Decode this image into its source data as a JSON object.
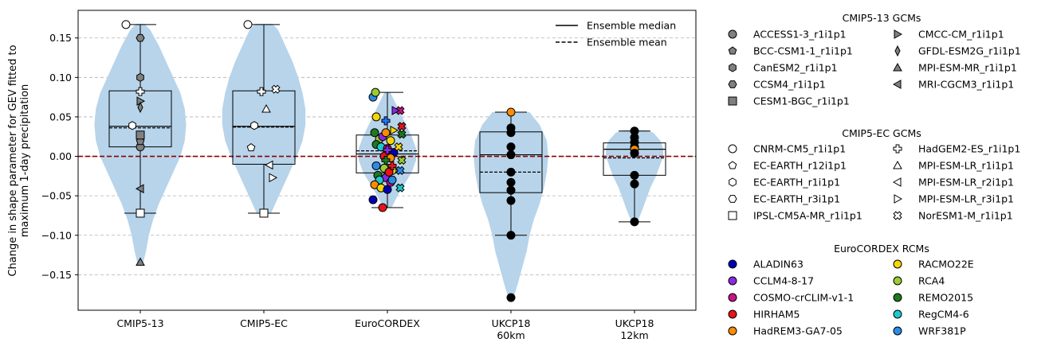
{
  "chart_data": {
    "type": "violin",
    "ylabel": [
      "Change in shape parameter for GEV fitted to",
      "maximum 1-day precipitation"
    ],
    "ylim": [
      -0.195,
      0.185
    ],
    "yticks": [
      -0.15,
      -0.1,
      -0.05,
      0.0,
      0.05,
      0.1,
      0.15
    ],
    "ytick_labels": [
      "−0.15",
      "−0.10",
      "−0.05",
      "0.00",
      "0.05",
      "0.10",
      "0.15"
    ],
    "grid": "horizontal dashed",
    "zero_line_color": "#8b0000",
    "violin_color": "#b7d4ea",
    "legend_lines": [
      {
        "label": "Ensemble median",
        "style": "solid"
      },
      {
        "label": "Ensemble mean",
        "style": "dashed"
      }
    ],
    "legend_location": "upper right",
    "categories": [
      {
        "label": [
          "CMIP5-13"
        ],
        "violin": [
          [
            -0.135,
            0.004
          ],
          [
            -0.12,
            0.008
          ],
          [
            -0.1,
            0.012
          ],
          [
            -0.08,
            0.018
          ],
          [
            -0.06,
            0.026
          ],
          [
            -0.04,
            0.036
          ],
          [
            -0.02,
            0.046
          ],
          [
            0.0,
            0.056
          ],
          [
            0.02,
            0.062
          ],
          [
            0.04,
            0.064
          ],
          [
            0.06,
            0.062
          ],
          [
            0.08,
            0.056
          ],
          [
            0.1,
            0.046
          ],
          [
            0.12,
            0.036
          ],
          [
            0.14,
            0.026
          ],
          [
            0.16,
            0.014
          ],
          [
            0.168,
            0.006
          ]
        ],
        "q1": 0.012,
        "median": 0.038,
        "mean": 0.036,
        "q3": 0.083,
        "whisker_low": -0.072,
        "whisker_high": 0.167,
        "points": [
          {
            "model": "ACCESS1-3_r1i1p1",
            "value": 0.012
          },
          {
            "model": "BCC-CSM1-1_r1i1p1",
            "value": 0.019
          },
          {
            "model": "CanESM2_r1i1p1",
            "value": 0.1
          },
          {
            "model": "CCSM4_r1i1p1",
            "value": 0.15
          },
          {
            "model": "CESM1-BGC_r1i1p1",
            "value": 0.027
          },
          {
            "model": "CMCC-CM_r1i1p1",
            "value": 0.07
          },
          {
            "model": "GFDL-ESM2G_r1i1p1",
            "value": 0.062
          },
          {
            "model": "MPI-ESM-MR_r1i1p1",
            "value": -0.134
          },
          {
            "model": "MRI-CGCM3_r1i1p1",
            "value": -0.041
          },
          {
            "model": "CNRM-CM5_r1i1p1",
            "value": 0.167,
            "dx": -18
          },
          {
            "model": "EC-EARTH_r1i1p1",
            "value": 0.039,
            "dx": -10
          },
          {
            "model": "HadGEM2-ES_r1i1p1",
            "value": 0.082
          },
          {
            "model": "IPSL-CM5A-MR_r1i1p1",
            "value": -0.072
          }
        ]
      },
      {
        "label": [
          "CMIP5-EC"
        ],
        "violin": [
          [
            -0.072,
            0.01
          ],
          [
            -0.06,
            0.016
          ],
          [
            -0.04,
            0.026
          ],
          [
            -0.02,
            0.036
          ],
          [
            0.0,
            0.046
          ],
          [
            0.02,
            0.054
          ],
          [
            0.04,
            0.058
          ],
          [
            0.06,
            0.058
          ],
          [
            0.08,
            0.054
          ],
          [
            0.1,
            0.048
          ],
          [
            0.12,
            0.04
          ],
          [
            0.14,
            0.03
          ],
          [
            0.16,
            0.02
          ],
          [
            0.168,
            0.012
          ]
        ],
        "q1": -0.01,
        "median": 0.038,
        "mean": 0.037,
        "q3": 0.083,
        "whisker_low": -0.072,
        "whisker_high": 0.167,
        "points": [
          {
            "model": "CNRM-CM5_r1i1p1",
            "value": 0.167,
            "dx": -20
          },
          {
            "model": "EC-EARTH_r12i1p1",
            "value": 0.011,
            "dx": -16
          },
          {
            "model": "EC-EARTH_r1i1p1",
            "value": 0.039,
            "dx": -12
          },
          {
            "model": "HadGEM2-ES_r1i1p1",
            "value": 0.082,
            "dx": -3
          },
          {
            "model": "MPI-ESM-LR_r1i1p1",
            "value": 0.06,
            "dx": 3
          },
          {
            "model": "MPI-ESM-LR_r2i1p1",
            "value": -0.011,
            "dx": 7
          },
          {
            "model": "MPI-ESM-LR_r3i1p1",
            "value": -0.027,
            "dx": 11
          },
          {
            "model": "NorESM1-M_r1i1p1",
            "value": 0.085,
            "dx": 15
          },
          {
            "model": "IPSL-CM5A-MR_r1i1p1",
            "value": -0.072,
            "dx": 0
          }
        ]
      },
      {
        "label": [
          "EuroCORDEX"
        ],
        "violin": [
          [
            -0.065,
            0.006
          ],
          [
            -0.05,
            0.014
          ],
          [
            -0.035,
            0.024
          ],
          [
            -0.02,
            0.034
          ],
          [
            -0.005,
            0.04
          ],
          [
            0.01,
            0.04
          ],
          [
            0.025,
            0.034
          ],
          [
            0.04,
            0.026
          ],
          [
            0.055,
            0.018
          ],
          [
            0.07,
            0.01
          ],
          [
            0.081,
            0.004
          ]
        ],
        "q1": -0.021,
        "median": 0.003,
        "mean": 0.007,
        "q3": 0.027,
        "whisker_low": -0.065,
        "whisker_high": 0.081,
        "points": [
          {
            "model": "ALADIN63",
            "value": -0.055,
            "dx": -18
          },
          {
            "model": "HIRHAM5",
            "value": -0.065,
            "dx": -6
          },
          {
            "model": "WRF381P",
            "value": 0.075,
            "dx": -18
          },
          {
            "model": "RCA4",
            "value": 0.081,
            "dx": -15
          },
          {
            "model": "RACMO22E",
            "value": 0.05,
            "dx": -14
          },
          {
            "model": "REMO2015",
            "value": 0.03,
            "dx": -16
          },
          {
            "model": "RCA4",
            "value": 0.022,
            "dx": -10
          },
          {
            "model": "CCLM4-8-17",
            "value": 0.025,
            "dx": -6
          },
          {
            "model": "HadREM3-GA7-05",
            "value": 0.03,
            "dx": -2
          },
          {
            "model": "RACMO22E",
            "value": 0.02,
            "dx": 4
          },
          {
            "model": "REMO2015",
            "value": 0.015,
            "dx": -14
          },
          {
            "model": "RegCM4-6",
            "value": 0.012,
            "dx": -8
          },
          {
            "model": "COSMO-crCLIM-v1-1",
            "value": 0.01,
            "dx": 0
          },
          {
            "model": "ALADIN63",
            "value": 0.005,
            "dx": 8
          },
          {
            "model": "HIRHAM5",
            "value": 0.0,
            "dx": -4
          },
          {
            "model": "HadREM3-GA7-05",
            "value": -0.002,
            "dx": 4
          },
          {
            "model": "WRF381P",
            "value": -0.012,
            "dx": -14
          },
          {
            "model": "RCA4",
            "value": -0.015,
            "dx": -4
          },
          {
            "model": "RACMO22E",
            "value": -0.018,
            "dx": 6
          },
          {
            "model": "REMO2015",
            "value": -0.024,
            "dx": -12
          },
          {
            "model": "CCLM4-8-17",
            "value": -0.027,
            "dx": -2
          },
          {
            "model": "HIRHAM5",
            "value": -0.02,
            "dx": 2
          },
          {
            "model": "RegCM4-6",
            "value": -0.03,
            "dx": -10
          },
          {
            "model": "COSMO-crCLIM-v1-1",
            "value": -0.033,
            "dx": 4
          },
          {
            "model": "HadREM3-GA7-05",
            "value": -0.036,
            "dx": -16
          },
          {
            "model": "RACMO22E",
            "value": -0.04,
            "dx": -8
          },
          {
            "model": "ALADIN63",
            "value": -0.042,
            "dx": 0
          },
          {
            "model": "WRF381P",
            "value": -0.03,
            "dx": 6
          }
        ],
        "gcm_points": [
          {
            "model": "HadGEM2-ES_r1i1p1",
            "value": 0.045,
            "dx": -2,
            "fill": "#1f77ff"
          },
          {
            "model": "NorESM1-M_r1i1p1",
            "value": 0.058,
            "dx": 16,
            "fill": "#c71585"
          },
          {
            "model": "MPI-ESM-LR_r3i1p1",
            "value": 0.058,
            "dx": 10,
            "fill": "#8a2be2"
          },
          {
            "model": "NorESM1-M_r1i1p1",
            "value": 0.038,
            "dx": 18,
            "fill": "#e8141a"
          },
          {
            "model": "MPI-ESM-LR_r3i1p1",
            "value": 0.033,
            "dx": 8,
            "fill": "#f5d60a"
          },
          {
            "model": "HadGEM2-ES_r1i1p1",
            "value": 0.008,
            "dx": 0,
            "fill": "#8a2be2"
          },
          {
            "model": "NorESM1-M_r1i1p1",
            "value": 0.028,
            "dx": 18,
            "fill": "#1e7a1e"
          },
          {
            "model": "HadGEM2-ES_r1i1p1",
            "value": -0.005,
            "dx": -2,
            "fill": "#1e7a1e"
          },
          {
            "model": "NorESM1-M_r1i1p1",
            "value": -0.005,
            "dx": 18,
            "fill": "#9acd32"
          },
          {
            "model": "NorESM1-M_r1i1p1",
            "value": -0.018,
            "dx": 16,
            "fill": "#2b8ce8"
          },
          {
            "model": "NorESM1-M_r1i1p1",
            "value": -0.04,
            "dx": 16,
            "fill": "#1ec8d0"
          },
          {
            "model": "HadGEM2-ES_r1i1p1",
            "value": -0.012,
            "dx": 6,
            "fill": "#e8141a"
          },
          {
            "model": "NorESM1-M_r1i1p1",
            "value": 0.012,
            "dx": 14,
            "fill": "#f5d60a"
          }
        ]
      },
      {
        "label": [
          "UKCP18",
          "60km"
        ],
        "violin": [
          [
            -0.178,
            0.004
          ],
          [
            -0.16,
            0.01
          ],
          [
            -0.14,
            0.016
          ],
          [
            -0.12,
            0.022
          ],
          [
            -0.1,
            0.026
          ],
          [
            -0.08,
            0.032
          ],
          [
            -0.06,
            0.04
          ],
          [
            -0.04,
            0.046
          ],
          [
            -0.02,
            0.05
          ],
          [
            0.0,
            0.052
          ],
          [
            0.02,
            0.05
          ],
          [
            0.04,
            0.04
          ],
          [
            0.056,
            0.026
          ]
        ],
        "q1": -0.046,
        "median": 0.002,
        "mean": -0.02,
        "q3": 0.031,
        "whisker_low": -0.1,
        "whisker_high": 0.056,
        "points": [
          {
            "model": "HadREM3-GA7-05",
            "value": 0.056,
            "fill": "#ff8c00"
          },
          {
            "model": "member",
            "value": 0.036
          },
          {
            "model": "member",
            "value": 0.03
          },
          {
            "model": "member",
            "value": 0.012
          },
          {
            "model": "member",
            "value": 0.002
          },
          {
            "model": "member",
            "value": -0.02
          },
          {
            "model": "member",
            "value": -0.033
          },
          {
            "model": "member",
            "value": -0.043
          },
          {
            "model": "member",
            "value": -0.056
          },
          {
            "model": "member",
            "value": -0.1
          },
          {
            "model": "member",
            "value": -0.179
          }
        ]
      },
      {
        "label": [
          "UKCP18",
          "12km"
        ],
        "violin": [
          [
            -0.083,
            0.004
          ],
          [
            -0.07,
            0.01
          ],
          [
            -0.055,
            0.016
          ],
          [
            -0.04,
            0.022
          ],
          [
            -0.025,
            0.03
          ],
          [
            -0.01,
            0.036
          ],
          [
            0.0,
            0.04
          ],
          [
            0.01,
            0.04
          ],
          [
            0.02,
            0.036
          ],
          [
            0.03,
            0.026
          ],
          [
            0.033,
            0.016
          ]
        ],
        "q1": -0.024,
        "median": 0.009,
        "mean": -0.002,
        "q3": 0.017,
        "whisker_low": -0.083,
        "whisker_high": 0.032,
        "points": [
          {
            "model": "member",
            "value": 0.032
          },
          {
            "model": "member",
            "value": 0.024
          },
          {
            "model": "member",
            "value": 0.018
          },
          {
            "model": "member",
            "value": 0.012
          },
          {
            "model": "HadREM3-GA7-05",
            "value": 0.009,
            "fill": "#ff8c00"
          },
          {
            "model": "member",
            "value": 0.004
          },
          {
            "model": "member",
            "value": -0.024
          },
          {
            "model": "member",
            "value": -0.035
          },
          {
            "model": "member",
            "value": -0.083
          }
        ]
      }
    ]
  },
  "legend": {
    "cmip13": {
      "title": "CMIP5-13 GCMs",
      "items": [
        {
          "label": "ACCESS1-3_r1i1p1",
          "marker": "circle",
          "fill": "#808080"
        },
        {
          "label": "BCC-CSM1-1_r1i1p1",
          "marker": "pentagon",
          "fill": "#808080"
        },
        {
          "label": "CanESM2_r1i1p1",
          "marker": "hexagon",
          "fill": "#808080"
        },
        {
          "label": "CCSM4_r1i1p1",
          "marker": "hexagon2",
          "fill": "#808080"
        },
        {
          "label": "CESM1-BGC_r1i1p1",
          "marker": "square",
          "fill": "#808080"
        },
        {
          "label": "CMCC-CM_r1i1p1",
          "marker": "tri-right",
          "fill": "#808080"
        },
        {
          "label": "GFDL-ESM2G_r1i1p1",
          "marker": "thin-diamond",
          "fill": "#808080"
        },
        {
          "label": "MPI-ESM-MR_r1i1p1",
          "marker": "tri-up",
          "fill": "#808080"
        },
        {
          "label": "MRI-CGCM3_r1i1p1",
          "marker": "tri-left",
          "fill": "#808080"
        }
      ]
    },
    "cmipec": {
      "title": "CMIP5-EC GCMs",
      "items": [
        {
          "label": "CNRM-CM5_r1i1p1",
          "marker": "circle",
          "fill": "#ffffff"
        },
        {
          "label": "EC-EARTH_r12i1p1",
          "marker": "pentagon",
          "fill": "#ffffff"
        },
        {
          "label": "EC-EARTH_r1i1p1",
          "marker": "hexagon",
          "fill": "#ffffff"
        },
        {
          "label": "EC-EARTH_r3i1p1",
          "marker": "hexagon2",
          "fill": "#ffffff"
        },
        {
          "label": "IPSL-CM5A-MR_r1i1p1",
          "marker": "square",
          "fill": "#ffffff"
        },
        {
          "label": "HadGEM2-ES_r1i1p1",
          "marker": "plus",
          "fill": "#ffffff"
        },
        {
          "label": "MPI-ESM-LR_r1i1p1",
          "marker": "tri-up",
          "fill": "#ffffff"
        },
        {
          "label": "MPI-ESM-LR_r2i1p1",
          "marker": "tri-left",
          "fill": "#ffffff"
        },
        {
          "label": "MPI-ESM-LR_r3i1p1",
          "marker": "tri-right",
          "fill": "#ffffff"
        },
        {
          "label": "NorESM1-M_r1i1p1",
          "marker": "x",
          "fill": "#ffffff"
        }
      ]
    },
    "rcm": {
      "title": "EuroCORDEX RCMs",
      "items": [
        {
          "label": "ALADIN63",
          "marker": "circle",
          "fill": "#0000b3"
        },
        {
          "label": "CCLM4-8-17",
          "marker": "circle",
          "fill": "#8a2be2"
        },
        {
          "label": "COSMO-crCLIM-v1-1",
          "marker": "circle",
          "fill": "#c71585"
        },
        {
          "label": "HIRHAM5",
          "marker": "circle",
          "fill": "#e8141a"
        },
        {
          "label": "HadREM3-GA7-05",
          "marker": "circle",
          "fill": "#ff8c00"
        },
        {
          "label": "RACMO22E",
          "marker": "circle",
          "fill": "#f5d60a"
        },
        {
          "label": "RCA4",
          "marker": "circle",
          "fill": "#9acd32"
        },
        {
          "label": "REMO2015",
          "marker": "circle",
          "fill": "#1e7a1e"
        },
        {
          "label": "RegCM4-6",
          "marker": "circle",
          "fill": "#1ec8d0"
        },
        {
          "label": "WRF381P",
          "marker": "circle",
          "fill": "#2b8ce8"
        }
      ]
    }
  }
}
